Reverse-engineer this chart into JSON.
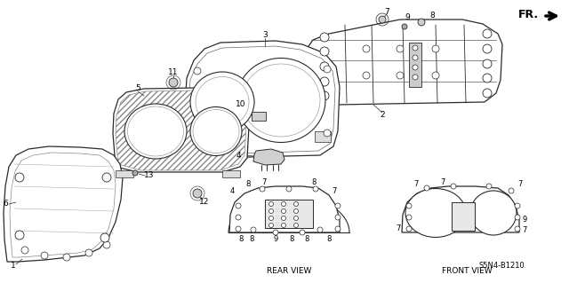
{
  "background_color": "#ffffff",
  "fig_width": 6.4,
  "fig_height": 3.19,
  "dpi": 100,
  "diagram_code": "S5N4-B1210",
  "labels": {
    "rear_view": "REAR VIEW",
    "front_view": "FRONT VIEW",
    "fr_label": "FR."
  },
  "line_color": "#2a2a2a",
  "light_gray": "#aaaaaa",
  "mid_gray": "#888888"
}
